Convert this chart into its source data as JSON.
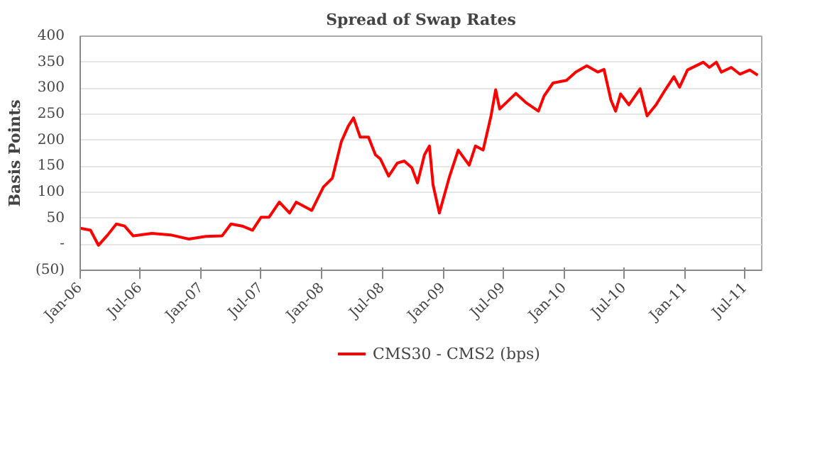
{
  "chart_data": {
    "type": "line",
    "title": "Spread of Swap Rates",
    "ylabel": "Basis Points",
    "x": [
      "2006-01-01",
      "2006-02-01",
      "2006-02-25",
      "2006-03-25",
      "2006-04-20",
      "2006-05-15",
      "2006-06-10",
      "2006-08-05",
      "2006-10-01",
      "2006-11-25",
      "2007-01-15",
      "2007-03-05",
      "2007-04-01",
      "2007-05-05",
      "2007-06-05",
      "2007-07-01",
      "2007-07-25",
      "2007-08-25",
      "2007-09-25",
      "2007-10-15",
      "2007-12-01",
      "2008-01-05",
      "2008-02-01",
      "2008-02-28",
      "2008-03-20",
      "2008-04-05",
      "2008-04-25",
      "2008-05-20",
      "2008-06-10",
      "2008-06-25",
      "2008-07-20",
      "2008-08-15",
      "2008-09-05",
      "2008-09-28",
      "2008-10-15",
      "2008-11-05",
      "2008-11-20",
      "2008-12-01",
      "2008-12-20",
      "2009-01-20",
      "2009-02-15",
      "2009-03-20",
      "2009-04-08",
      "2009-05-01",
      "2009-05-25",
      "2009-06-08",
      "2009-06-20",
      "2009-08-08",
      "2009-09-08",
      "2009-10-15",
      "2009-11-01",
      "2009-11-28",
      "2010-01-08",
      "2010-02-05",
      "2010-03-10",
      "2010-04-12",
      "2010-05-01",
      "2010-05-22",
      "2010-06-05",
      "2010-06-20",
      "2010-07-15",
      "2010-08-18",
      "2010-09-08",
      "2010-10-05",
      "2010-11-02",
      "2010-11-28",
      "2010-12-15",
      "2011-01-08",
      "2011-02-25",
      "2011-03-15",
      "2011-04-05",
      "2011-04-20",
      "2011-05-20",
      "2011-06-15",
      "2011-07-15",
      "2011-08-08"
    ],
    "series": [
      {
        "name": "CMS30 - CMS2 (bps)",
        "color": "#ff0000",
        "values": [
          31,
          27,
          -2,
          18,
          39,
          35,
          16,
          21,
          18,
          10,
          15,
          16,
          39,
          35,
          27,
          52,
          52,
          81,
          60,
          81,
          65,
          110,
          127,
          197,
          227,
          243,
          206,
          206,
          172,
          164,
          131,
          156,
          160,
          147,
          118,
          172,
          189,
          114,
          60,
          131,
          181,
          152,
          189,
          181,
          247,
          297,
          260,
          290,
          272,
          256,
          285,
          310,
          315,
          331,
          343,
          331,
          336,
          277,
          256,
          289,
          268,
          299,
          247,
          268,
          297,
          322,
          302,
          335,
          350,
          340,
          350,
          331,
          340,
          327,
          335,
          325
        ]
      }
    ],
    "xlim": [
      "2006-01-01",
      "2011-08-20"
    ],
    "xticks": [
      {
        "value": "2006-01",
        "label": "Jan-06"
      },
      {
        "value": "2006-07",
        "label": "Jul-06"
      },
      {
        "value": "2007-01",
        "label": "Jan-07"
      },
      {
        "value": "2007-07",
        "label": "Jul-07"
      },
      {
        "value": "2008-01",
        "label": "Jan-08"
      },
      {
        "value": "2008-07",
        "label": "Jul-08"
      },
      {
        "value": "2009-01",
        "label": "Jan-09"
      },
      {
        "value": "2009-07",
        "label": "Jul-09"
      },
      {
        "value": "2010-01",
        "label": "Jan-10"
      },
      {
        "value": "2010-07",
        "label": "Jul-10"
      },
      {
        "value": "2011-01",
        "label": "Jan-11"
      },
      {
        "value": "2011-07",
        "label": "Jul-11"
      }
    ],
    "ylim": [
      -50,
      400
    ],
    "yticks": [
      {
        "value": -50,
        "label": "(50)"
      },
      {
        "value": 0,
        "label": "-"
      },
      50,
      100,
      150,
      200,
      250,
      300,
      350,
      400
    ],
    "grid": "y",
    "legend": "bottom",
    "line_style": "solid",
    "marker": "none"
  }
}
